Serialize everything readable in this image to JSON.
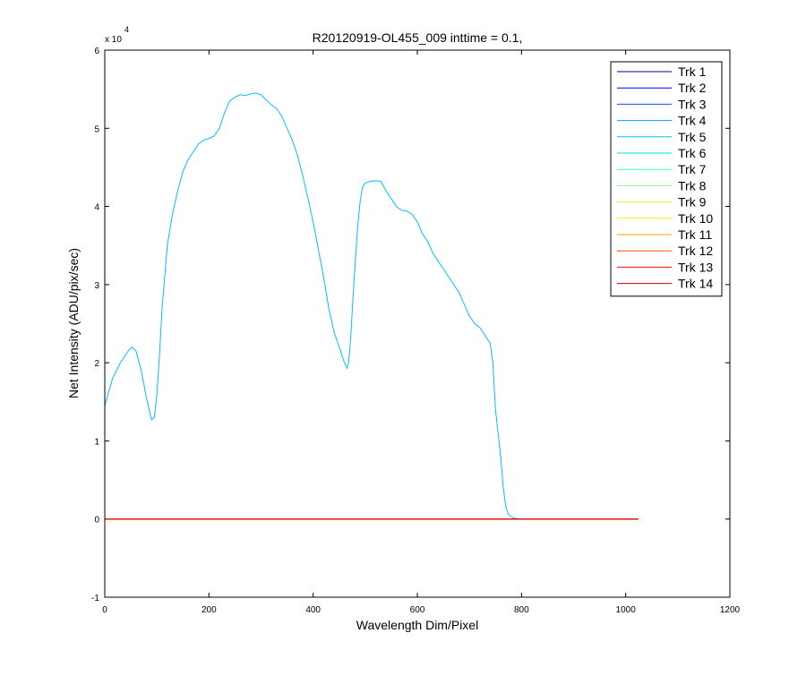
{
  "chart_data": {
    "type": "line",
    "title": "R20120919-OL455_009 inttime = 0.1,",
    "xlabel": "Wavelength Dim/Pixel",
    "ylabel": "Net Intensity (ADU/pix/sec)",
    "y_exponent_base": "x 10",
    "y_exponent_power": "4",
    "xlim": [
      0,
      1200
    ],
    "ylim": [
      -1,
      6
    ],
    "y_scale_factor": 10000,
    "xticks": [
      0,
      200,
      400,
      600,
      800,
      1000,
      1200
    ],
    "yticks": [
      -1,
      0,
      1,
      2,
      3,
      4,
      5,
      6
    ],
    "grid": false,
    "legend_position": "top-right",
    "series": [
      {
        "name": "Trk 1",
        "color": "#00008f",
        "x": [
          0,
          1024
        ],
        "y": [
          0,
          0
        ]
      },
      {
        "name": "Trk 2",
        "color": "#0000ef",
        "x": [
          0,
          1024
        ],
        "y": [
          0,
          0
        ]
      },
      {
        "name": "Trk 3",
        "color": "#0050ff",
        "x": [
          0,
          1024
        ],
        "y": [
          0,
          0
        ]
      },
      {
        "name": "Trk 4",
        "color": "#00a0ff",
        "x": [
          0,
          1024
        ],
        "y": [
          0,
          0
        ]
      },
      {
        "name": "Trk 5",
        "color": "#00bfff",
        "x": [
          0,
          15,
          30,
          45,
          52,
          60,
          70,
          80,
          90,
          95,
          100,
          105,
          110,
          115,
          120,
          130,
          140,
          150,
          160,
          170,
          180,
          190,
          200,
          210,
          220,
          230,
          240,
          250,
          260,
          270,
          280,
          290,
          300,
          310,
          320,
          330,
          340,
          350,
          360,
          370,
          380,
          390,
          400,
          410,
          420,
          430,
          440,
          450,
          460,
          465,
          468,
          472,
          478,
          485,
          490,
          495,
          500,
          505,
          510,
          520,
          530,
          540,
          550,
          560,
          570,
          580,
          590,
          600,
          610,
          620,
          630,
          640,
          650,
          660,
          670,
          680,
          690,
          700,
          710,
          720,
          730,
          740,
          745,
          750,
          755,
          760,
          765,
          770,
          775,
          780,
          785,
          790,
          795,
          800,
          810,
          820
        ],
        "y": [
          14500,
          18000,
          20000,
          21500,
          22000,
          21500,
          19000,
          15500,
          12700,
          13000,
          16000,
          21000,
          27000,
          31000,
          35000,
          39000,
          42000,
          44500,
          46000,
          47000,
          48000,
          48500,
          48700,
          49000,
          50000,
          52000,
          53500,
          54000,
          54300,
          54200,
          54400,
          54500,
          54300,
          53600,
          53000,
          52500,
          51500,
          50000,
          48500,
          46500,
          44000,
          41000,
          38000,
          34500,
          31000,
          27000,
          24000,
          22000,
          20000,
          19300,
          20000,
          23000,
          30000,
          37000,
          40500,
          42500,
          43000,
          43100,
          43200,
          43300,
          43200,
          42000,
          41000,
          40000,
          39500,
          39400,
          39000,
          38000,
          36500,
          35500,
          34000,
          33000,
          32000,
          31000,
          30000,
          29000,
          27500,
          26000,
          25000,
          24500,
          23500,
          22500,
          20000,
          14000,
          11000,
          8000,
          4000,
          1500,
          600,
          300,
          150,
          80,
          40,
          20,
          0,
          0
        ]
      },
      {
        "name": "Trk 6",
        "color": "#00e0ef",
        "x": [
          0,
          1024
        ],
        "y": [
          0,
          0
        ]
      },
      {
        "name": "Trk 7",
        "color": "#30ffcf",
        "x": [
          0,
          1024
        ],
        "y": [
          0,
          0
        ]
      },
      {
        "name": "Trk 8",
        "color": "#80ff80",
        "x": [
          0,
          1024
        ],
        "y": [
          0,
          0
        ]
      },
      {
        "name": "Trk 9",
        "color": "#cfff30",
        "x": [
          0,
          1024
        ],
        "y": [
          0,
          0
        ]
      },
      {
        "name": "Trk 10",
        "color": "#ffef00",
        "x": [
          0,
          1024
        ],
        "y": [
          0,
          0
        ]
      },
      {
        "name": "Trk 11",
        "color": "#ffa000",
        "x": [
          0,
          1024
        ],
        "y": [
          0,
          0
        ]
      },
      {
        "name": "Trk 12",
        "color": "#ff5000",
        "x": [
          0,
          1024
        ],
        "y": [
          0,
          0
        ]
      },
      {
        "name": "Trk 13",
        "color": "#ef1000",
        "x": [
          0,
          1024
        ],
        "y": [
          0,
          0
        ]
      },
      {
        "name": "Trk 14",
        "color": "#cf0000",
        "x": [
          0,
          1024
        ],
        "y": [
          0,
          0
        ]
      }
    ]
  }
}
